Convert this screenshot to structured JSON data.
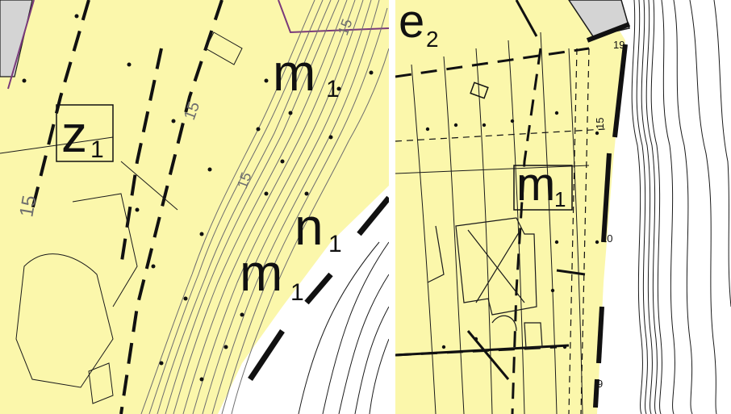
{
  "colors": {
    "zone_fill": "#fbf7ab",
    "building": "#d4d4d4",
    "contour_dark": "#1a1a1a",
    "contour_grey": "#6e6e6e",
    "boundary": "#7a3a7a",
    "background": "#ffffff"
  },
  "left_panel": {
    "zone_labels": [
      {
        "base": "z",
        "sub": "1"
      },
      {
        "base": "m",
        "sub": "1"
      },
      {
        "base": "n",
        "sub": "1"
      },
      {
        "base": "m",
        "sub": "1"
      }
    ],
    "contour_numbers": [
      "15",
      "15",
      "15",
      "15"
    ]
  },
  "right_panel": {
    "zone_labels": [
      {
        "base": "e",
        "sub": "2"
      },
      {
        "base": "m",
        "sub": "1"
      }
    ],
    "spot_numbers": [
      "19",
      "15",
      "10",
      "9"
    ]
  }
}
